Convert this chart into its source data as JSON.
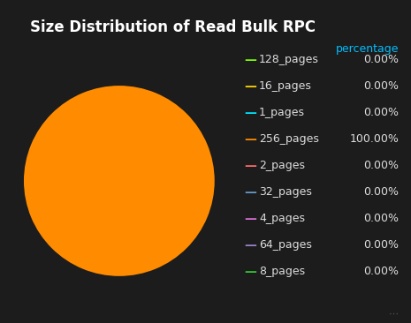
{
  "title": "Size Distribution of Read Bulk RPC",
  "background_color": "#1c1c1c",
  "title_color": "#ffffff",
  "title_fontsize": 12,
  "legend_header": "percentage",
  "legend_header_color": "#00bfff",
  "labels": [
    "128_pages",
    "16_pages",
    "1_pages",
    "256_pages",
    "2_pages",
    "32_pages",
    "4_pages",
    "64_pages",
    "8_pages"
  ],
  "values": [
    0.0001,
    0.0001,
    0.0001,
    100.0,
    0.0001,
    0.0001,
    0.0001,
    0.0001,
    0.0001
  ],
  "colors": [
    "#7cfc00",
    "#ffd700",
    "#00e5ff",
    "#ff8c00",
    "#ff6b6b",
    "#6699cc",
    "#da70d6",
    "#9b80cc",
    "#32cd32"
  ],
  "percentages": [
    "0.00%",
    "0.00%",
    "0.00%",
    "100.00%",
    "0.00%",
    "0.00%",
    "0.00%",
    "0.00%",
    "0.00%"
  ],
  "pie_startangle": 90,
  "legend_text_color": "#dddddd",
  "legend_fontsize": 9,
  "pct_fontsize": 9
}
